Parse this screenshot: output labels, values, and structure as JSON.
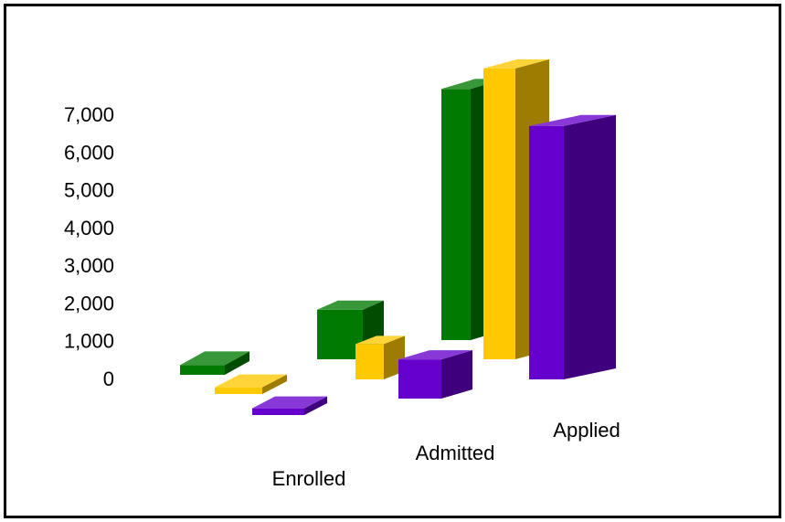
{
  "chart_data": {
    "type": "bar",
    "style": "3d-perspective-columns",
    "title": "",
    "xlabel": "",
    "ylabel": "",
    "ylim": [
      0,
      7000
    ],
    "yticks": [
      "0",
      "1,000",
      "2,000",
      "3,000",
      "4,000",
      "5,000",
      "6,000",
      "7,000"
    ],
    "categories": [
      "Enrolled",
      "Admitted",
      "Applied"
    ],
    "series": [
      {
        "color": "#007a00",
        "values": [
          500,
          1900,
          5700
        ]
      },
      {
        "color": "#ffc800",
        "values": [
          350,
          1350,
          6600
        ]
      },
      {
        "color": "#6600cc",
        "values": [
          350,
          1500,
          5750
        ]
      }
    ],
    "grid": false,
    "legend": "none"
  }
}
